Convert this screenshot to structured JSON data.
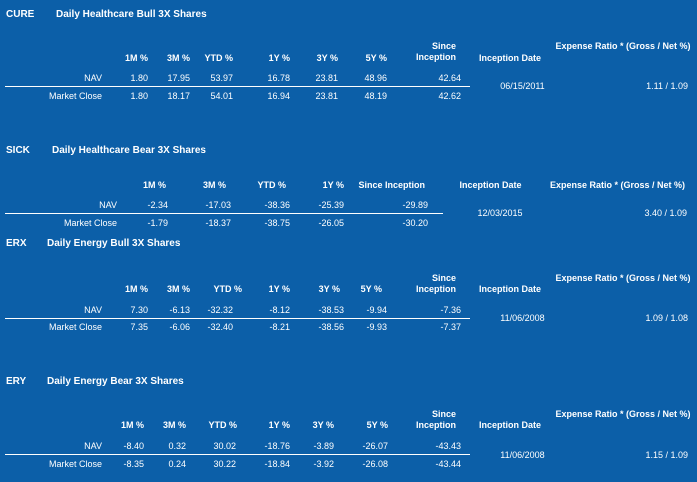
{
  "funds": [
    {
      "ticker": "CURE",
      "name": "Daily Healthcare Bull 3X Shares",
      "headers": [
        "1M %",
        "3M %",
        "YTD %",
        "1Y %",
        "3Y %",
        "5Y %",
        "Since Inception",
        "Inception Date",
        "Expense Ratio * (Gross / Net %)"
      ],
      "rows": [
        {
          "label": "NAV",
          "values": [
            "1.80",
            "17.95",
            "53.97",
            "16.78",
            "23.81",
            "48.96",
            "42.64"
          ]
        },
        {
          "label": "Market Close",
          "values": [
            "1.80",
            "18.17",
            "54.01",
            "16.94",
            "23.81",
            "48.19",
            "42.62"
          ]
        }
      ],
      "inception_date": "06/15/2011",
      "expense_ratio": "1.11 / 1.09"
    },
    {
      "ticker": "SICK",
      "name": "Daily Healthcare Bear 3X Shares",
      "headers": [
        "1M %",
        "3M %",
        "YTD %",
        "1Y %",
        "Since Inception",
        "Inception Date",
        "Expense Ratio * (Gross / Net %)"
      ],
      "rows": [
        {
          "label": "NAV",
          "values": [
            "-2.34",
            "-17.03",
            "-38.36",
            "-25.39",
            "-29.89"
          ]
        },
        {
          "label": "Market Close",
          "values": [
            "-1.79",
            "-18.37",
            "-38.75",
            "-26.05",
            "-30.20"
          ]
        }
      ],
      "inception_date": "12/03/2015",
      "expense_ratio": "3.40 / 1.09"
    },
    {
      "ticker": "ERX",
      "name": "Daily Energy Bull 3X Shares",
      "headers": [
        "1M %",
        "3M %",
        "YTD %",
        "1Y %",
        "3Y %",
        "5Y %",
        "Since Inception",
        "Inception Date",
        "Expense Ratio * (Gross / Net %)"
      ],
      "rows": [
        {
          "label": "NAV",
          "values": [
            "7.30",
            "-6.13",
            "-32.32",
            "-8.12",
            "-38.53",
            "-9.94",
            "-7.36"
          ]
        },
        {
          "label": "Market Close",
          "values": [
            "7.35",
            "-6.06",
            "-32.40",
            "-8.21",
            "-38.56",
            "-9.93",
            "-7.37"
          ]
        }
      ],
      "inception_date": "11/06/2008",
      "expense_ratio": "1.09 / 1.08"
    },
    {
      "ticker": "ERY",
      "name": "Daily Energy Bear 3X Shares",
      "headers": [
        "1M %",
        "3M %",
        "YTD %",
        "1Y %",
        "3Y %",
        "5Y %",
        "Since Inception",
        "Inception Date",
        "Expense Ratio * (Gross / Net %)"
      ],
      "rows": [
        {
          "label": "NAV",
          "values": [
            "-8.40",
            "0.32",
            "30.02",
            "-18.76",
            "-3.89",
            "-26.07",
            "-43.43"
          ]
        },
        {
          "label": "Market Close",
          "values": [
            "-8.35",
            "0.24",
            "30.22",
            "-18.84",
            "-3.92",
            "-26.08",
            "-43.44"
          ]
        }
      ],
      "inception_date": "11/06/2008",
      "expense_ratio": "1.15 / 1.09"
    }
  ]
}
